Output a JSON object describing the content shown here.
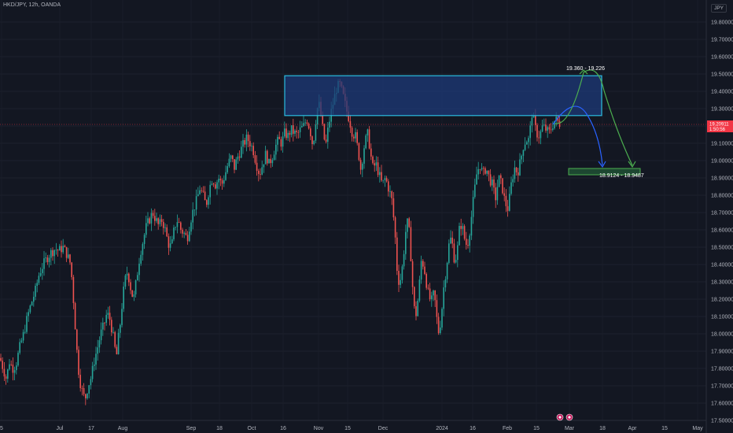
{
  "header": {
    "symbol_line": "HKD/JPY, 12h, OANDA"
  },
  "axis": {
    "currency_button": "JPY"
  },
  "price_tag": {
    "price": "19.20911",
    "countdown": "1:50:56"
  },
  "zones": {
    "resistance": {
      "from": 19.26,
      "to": 19.49
    },
    "target": {
      "from": 18.93,
      "to": 18.95
    }
  },
  "labels": {
    "upper": "19.360 - 19.226",
    "lower": "18.9124 - 18.9487"
  },
  "colors": {
    "background": "#131722",
    "up": "#26a69a",
    "down": "#ef5350",
    "zone_blue_fill": "#1e3a78",
    "zone_blue_border": "#2bbde0",
    "zone_green_fill": "#1f4d33",
    "arrow_blue": "#2962ff",
    "arrow_green": "#4caf50",
    "price_tag": "#f23645"
  },
  "chart_data": {
    "type": "candlestick",
    "title": "HKD/JPY, 12h, OANDA",
    "ylim": [
      17.5,
      19.8
    ],
    "y_ticks": [
      "19.80000",
      "19.70000",
      "19.60000",
      "19.50000",
      "19.40000",
      "19.30000",
      "19.20000",
      "19.10000",
      "19.00000",
      "18.90000",
      "18.80000",
      "18.70000",
      "18.60000",
      "18.50000",
      "18.40000",
      "18.30000",
      "18.20000",
      "18.10000",
      "18.00000",
      "17.90000",
      "17.80000",
      "17.70000",
      "17.60000",
      "17.50000"
    ],
    "x_ticks": [
      "5",
      "Jul",
      "17",
      "Aug",
      "Sep",
      "18",
      "Oct",
      "16",
      "Nov",
      "15",
      "Dec",
      "2024",
      "16",
      "Feb",
      "15",
      "Mar",
      "18",
      "Apr",
      "15",
      "May"
    ],
    "price_path": [
      [
        0,
        17.86
      ],
      [
        4,
        17.8
      ],
      [
        8,
        17.74
      ],
      [
        12,
        17.84
      ],
      [
        16,
        17.8
      ],
      [
        20,
        17.82
      ],
      [
        25,
        17.92
      ],
      [
        30,
        18.0
      ],
      [
        35,
        18.1
      ],
      [
        40,
        18.18
      ],
      [
        45,
        18.25
      ],
      [
        50,
        18.35
      ],
      [
        55,
        18.4
      ],
      [
        60,
        18.44
      ],
      [
        65,
        18.47
      ],
      [
        70,
        18.49
      ],
      [
        75,
        18.48
      ],
      [
        80,
        18.5
      ],
      [
        85,
        18.46
      ],
      [
        90,
        18.4
      ],
      [
        93,
        18.22
      ],
      [
        96,
        18.02
      ],
      [
        99,
        17.82
      ],
      [
        102,
        17.72
      ],
      [
        105,
        17.66
      ],
      [
        108,
        17.62
      ],
      [
        112,
        17.7
      ],
      [
        116,
        17.75
      ],
      [
        120,
        17.85
      ],
      [
        124,
        17.92
      ],
      [
        128,
        18.0
      ],
      [
        132,
        18.05
      ],
      [
        136,
        18.12
      ],
      [
        140,
        18.08
      ],
      [
        144,
        17.98
      ],
      [
        148,
        17.86
      ],
      [
        150,
        17.96
      ],
      [
        152,
        18.02
      ],
      [
        155,
        18.16
      ],
      [
        158,
        18.28
      ],
      [
        161,
        18.36
      ],
      [
        164,
        18.32
      ],
      [
        167,
        18.24
      ],
      [
        170,
        18.2
      ],
      [
        174,
        18.33
      ],
      [
        178,
        18.46
      ],
      [
        182,
        18.54
      ],
      [
        186,
        18.62
      ],
      [
        190,
        18.66
      ],
      [
        194,
        18.7
      ],
      [
        198,
        18.66
      ],
      [
        202,
        18.62
      ],
      [
        206,
        18.66
      ],
      [
        210,
        18.6
      ],
      [
        214,
        18.52
      ],
      [
        218,
        18.5
      ],
      [
        222,
        18.62
      ],
      [
        226,
        18.66
      ],
      [
        230,
        18.6
      ],
      [
        234,
        18.58
      ],
      [
        238,
        18.55
      ],
      [
        242,
        18.65
      ],
      [
        246,
        18.72
      ],
      [
        250,
        18.77
      ],
      [
        254,
        18.84
      ],
      [
        258,
        18.8
      ],
      [
        262,
        18.74
      ],
      [
        266,
        18.84
      ],
      [
        270,
        18.9
      ],
      [
        274,
        18.86
      ],
      [
        278,
        18.9
      ],
      [
        282,
        18.86
      ],
      [
        286,
        18.92
      ],
      [
        290,
        18.98
      ],
      [
        294,
        19.02
      ],
      [
        298,
        18.96
      ],
      [
        302,
        19.02
      ],
      [
        306,
        19.06
      ],
      [
        310,
        19.1
      ],
      [
        314,
        19.13
      ],
      [
        318,
        19.1
      ],
      [
        322,
        19.06
      ],
      [
        326,
        18.98
      ],
      [
        330,
        18.92
      ],
      [
        334,
        18.98
      ],
      [
        338,
        19.04
      ],
      [
        342,
        18.98
      ],
      [
        346,
        19.02
      ],
      [
        350,
        19.08
      ],
      [
        354,
        19.12
      ],
      [
        358,
        19.1
      ],
      [
        362,
        19.16
      ],
      [
        366,
        19.14
      ],
      [
        370,
        19.18
      ],
      [
        374,
        19.16
      ],
      [
        378,
        19.15
      ],
      [
        382,
        19.18
      ],
      [
        386,
        19.2
      ],
      [
        390,
        19.24
      ],
      [
        394,
        19.18
      ],
      [
        398,
        19.08
      ],
      [
        402,
        19.26
      ],
      [
        405,
        19.34
      ],
      [
        408,
        19.26
      ],
      [
        411,
        19.16
      ],
      [
        414,
        19.08
      ],
      [
        417,
        19.18
      ],
      [
        420,
        19.26
      ],
      [
        424,
        19.34
      ],
      [
        428,
        19.42
      ],
      [
        432,
        19.44
      ],
      [
        436,
        19.38
      ],
      [
        440,
        19.3
      ],
      [
        444,
        19.24
      ],
      [
        448,
        19.16
      ],
      [
        452,
        19.14
      ],
      [
        456,
        19.04
      ],
      [
        459,
        18.94
      ],
      [
        462,
        19.06
      ],
      [
        465,
        19.12
      ],
      [
        468,
        19.16
      ],
      [
        471,
        19.04
      ],
      [
        474,
        18.96
      ],
      [
        478,
        18.98
      ],
      [
        482,
        18.92
      ],
      [
        486,
        18.86
      ],
      [
        490,
        18.9
      ],
      [
        494,
        18.84
      ],
      [
        498,
        18.78
      ],
      [
        502,
        18.6
      ],
      [
        505,
        18.36
      ],
      [
        508,
        18.28
      ],
      [
        512,
        18.4
      ],
      [
        516,
        18.6
      ],
      [
        519,
        18.66
      ],
      [
        522,
        18.48
      ],
      [
        525,
        18.24
      ],
      [
        528,
        18.08
      ],
      [
        532,
        18.22
      ],
      [
        536,
        18.44
      ],
      [
        540,
        18.36
      ],
      [
        544,
        18.24
      ],
      [
        548,
        18.18
      ],
      [
        552,
        18.24
      ],
      [
        555,
        18.1
      ],
      [
        558,
        18.0
      ],
      [
        561,
        18.1
      ],
      [
        564,
        18.26
      ],
      [
        568,
        18.4
      ],
      [
        572,
        18.56
      ],
      [
        575,
        18.52
      ],
      [
        578,
        18.42
      ],
      [
        581,
        18.46
      ],
      [
        584,
        18.6
      ],
      [
        587,
        18.64
      ],
      [
        590,
        18.56
      ],
      [
        594,
        18.5
      ],
      [
        598,
        18.62
      ],
      [
        602,
        18.78
      ],
      [
        606,
        18.92
      ],
      [
        610,
        18.98
      ],
      [
        614,
        18.92
      ],
      [
        618,
        18.96
      ],
      [
        622,
        18.9
      ],
      [
        626,
        18.86
      ],
      [
        630,
        18.78
      ],
      [
        634,
        18.9
      ],
      [
        638,
        18.86
      ],
      [
        642,
        18.76
      ],
      [
        646,
        18.72
      ],
      [
        650,
        18.86
      ],
      [
        654,
        18.96
      ],
      [
        658,
        18.93
      ],
      [
        662,
        19.0
      ],
      [
        666,
        19.1
      ],
      [
        670,
        19.12
      ],
      [
        673,
        19.12
      ],
      [
        676,
        19.28
      ],
      [
        679,
        19.22
      ],
      [
        682,
        19.16
      ],
      [
        686,
        19.14
      ],
      [
        690,
        19.2
      ],
      [
        694,
        19.18
      ],
      [
        698,
        19.16
      ],
      [
        702,
        19.2
      ],
      [
        706,
        19.24
      ],
      [
        710,
        19.22
      ],
      [
        713,
        19.21
      ]
    ]
  }
}
